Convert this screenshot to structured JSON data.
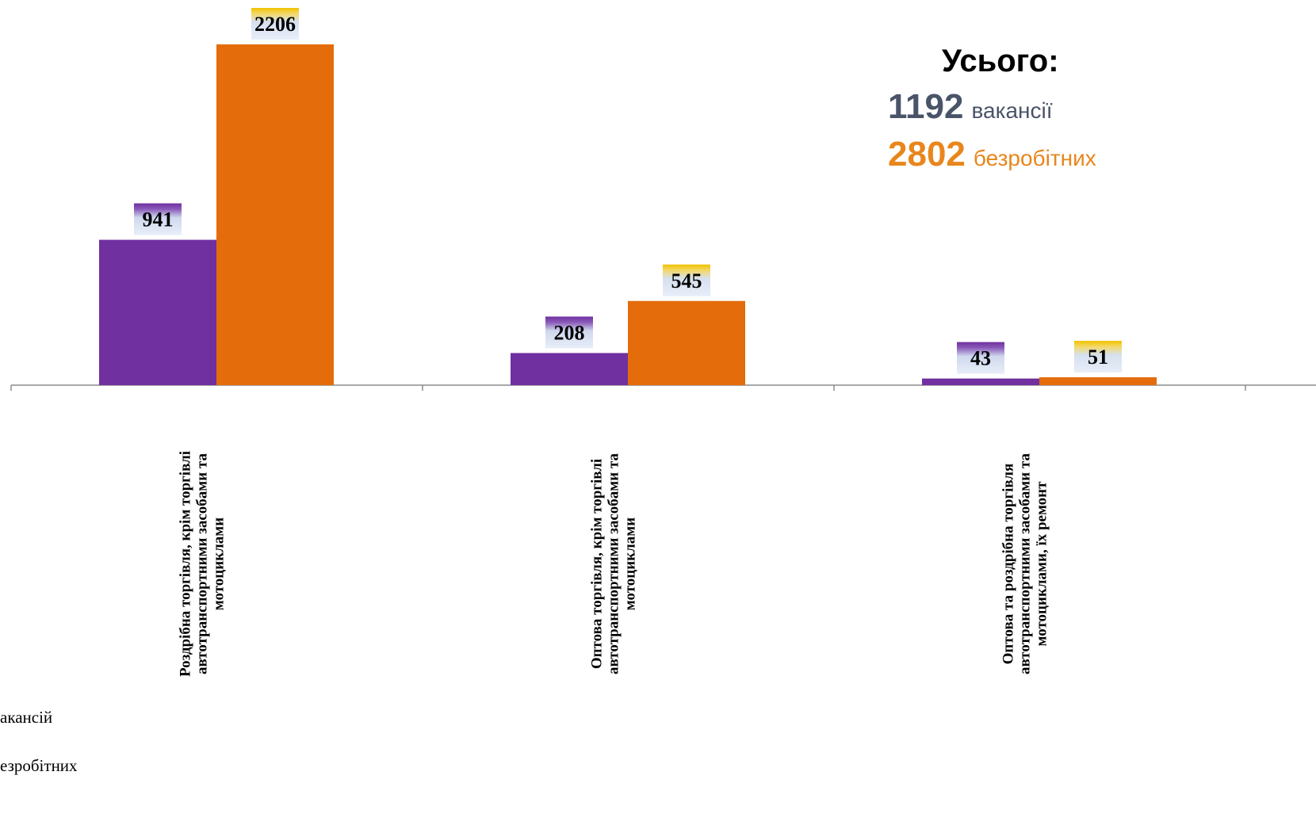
{
  "chart_data": {
    "type": "bar",
    "categories": [
      "Роздрібна торгівля, крім торгівлі автотранспортними засобами та мотоциклами",
      "Оптова торгівля, крім торгівлі автотранспортними засобами та мотоциклами",
      "Оптова та роздрібна торгівля автотранспортними засобами та мотоциклами, їх ремонт"
    ],
    "category_lines": [
      [
        "Роздрібна торгівля, крім торгівлі",
        "автотранспортними засобами та",
        "мотоциклами"
      ],
      [
        "Оптова торгівля, крім торгівлі",
        "автотранспортними засобами та",
        "мотоциклами"
      ],
      [
        "Оптова та роздрібна торгівля",
        "автотранспортними засобами та",
        "мотоциклами, їх ремонт"
      ]
    ],
    "series": [
      {
        "name": "акансій",
        "color": "#7030a0",
        "values": [
          941,
          208,
          43
        ]
      },
      {
        "name": "езробітних",
        "color": "#e46c0a",
        "values": [
          2206,
          545,
          51
        ]
      }
    ],
    "ylim": [
      0,
      2206
    ],
    "grid": false,
    "legend_position": "bottom-left"
  },
  "totals": {
    "title": "Усього:",
    "vacancies_value": "1192",
    "vacancies_word": "вакансії",
    "unemployed_value": "2802",
    "unemployed_word": "безробітних",
    "vacancies_color": "#4a5468",
    "unemployed_color": "#e8861c"
  }
}
